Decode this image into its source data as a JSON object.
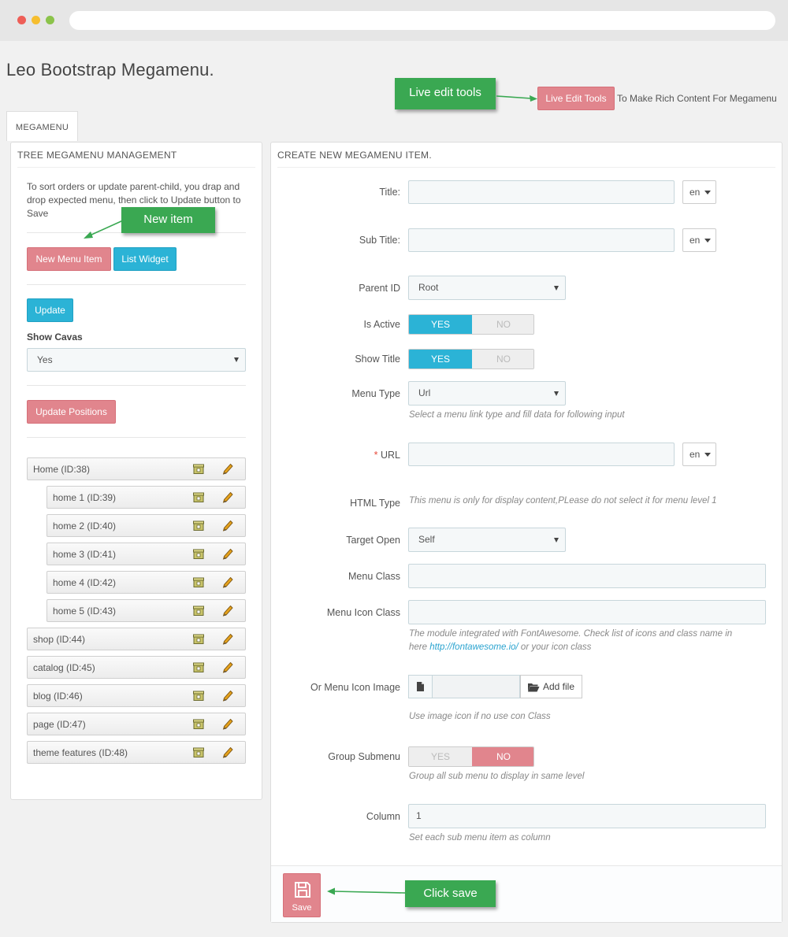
{
  "page": {
    "title": "Leo Bootstrap Megamenu."
  },
  "callouts": {
    "live_edit": "Live edit tools",
    "new_item": "New item",
    "click_save": "Click save"
  },
  "toolbar": {
    "live_edit_button": "Live Edit Tools",
    "live_edit_text": "To Make Rich Content For Megamenu"
  },
  "tab": {
    "label": "MEGAMENU"
  },
  "left_panel": {
    "heading": "TREE MEGAMENU MANAGEMENT",
    "help": "To sort orders or update parent-child, you drap and drop expected menu, then click to Update button to Save",
    "new_menu_item": "New Menu Item",
    "list_widget": "List Widget",
    "update": "Update",
    "show_cavas_label": "Show Cavas",
    "show_cavas_value": "Yes",
    "update_positions": "Update Positions",
    "tree": [
      {
        "label": "Home (ID:38)",
        "level": 0
      },
      {
        "label": "home 1 (ID:39)",
        "level": 1
      },
      {
        "label": "home 2 (ID:40)",
        "level": 1
      },
      {
        "label": "home 3 (ID:41)",
        "level": 1
      },
      {
        "label": "home 4 (ID:42)",
        "level": 1
      },
      {
        "label": "home 5 (ID:43)",
        "level": 1
      },
      {
        "label": "shop (ID:44)",
        "level": 0
      },
      {
        "label": "catalog (ID:45)",
        "level": 0
      },
      {
        "label": "blog (ID:46)",
        "level": 0
      },
      {
        "label": "page (ID:47)",
        "level": 0
      },
      {
        "label": "theme features (ID:48)",
        "level": 0
      }
    ]
  },
  "right_panel": {
    "heading": "CREATE NEW MEGAMENU ITEM.",
    "lang": "en",
    "fields": {
      "title_label": "Title:",
      "sub_title_label": "Sub Title:",
      "parent_id_label": "Parent ID",
      "parent_id_value": "Root",
      "is_active_label": "Is Active",
      "show_title_label": "Show Title",
      "menu_type_label": "Menu Type",
      "menu_type_value": "Url",
      "menu_type_hint": "Select a menu link type and fill data for following input",
      "url_required": "*",
      "url_label": "URL",
      "html_type_label": "HTML Type",
      "html_type_hint": "This menu is only for display content,PLease do not select it for menu level 1",
      "target_open_label": "Target Open",
      "target_open_value": "Self",
      "menu_class_label": "Menu Class",
      "menu_icon_class_label": "Menu Icon Class",
      "icon_hint_1": "The module integrated with FontAwesome. Check list of icons and class name in",
      "icon_hint_2a": "here ",
      "icon_hint_link": "http://fontawesome.io/",
      "icon_hint_2b": " or your icon class",
      "icon_image_label": "Or Menu Icon Image",
      "add_file": "Add file",
      "icon_image_hint": "Use image icon if no use con Class",
      "group_submenu_label": "Group Submenu",
      "group_submenu_hint": "Group all sub menu to display in same level",
      "column_label": "Column",
      "column_value": "1",
      "column_hint": "Set each sub menu item as column"
    },
    "switch": {
      "yes": "YES",
      "no": "NO"
    },
    "save": "Save"
  },
  "colors": {
    "accent_red": "#e1858d",
    "accent_blue": "#2bb3d6",
    "callout_green": "#3aa852"
  }
}
